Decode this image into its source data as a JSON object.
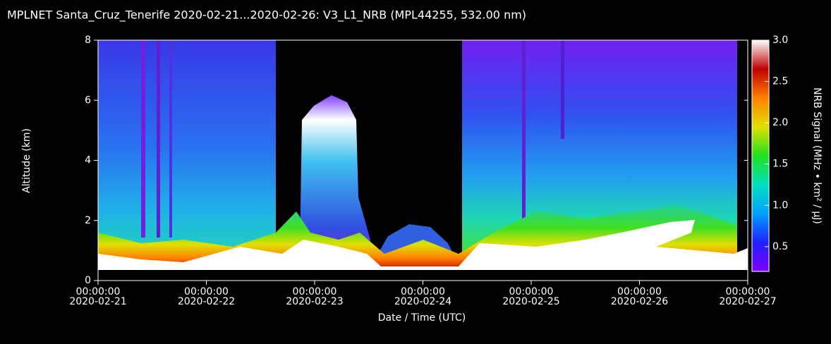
{
  "chart_data": {
    "type": "heatmap",
    "title": "MPLNET Santa_Cruz_Tenerife 2020-02-21...2020-02-26:  V3_L1_NRB   (MPL44255, 532.00 nm)",
    "x_label": "Date / Time (UTC)",
    "y_label": "Altitude (km)",
    "colorbar_label": "NRB Signal (MHz • km² / μJ)",
    "xlim": [
      "2020-02-21T00:00:00Z",
      "2020-02-27T00:00:00Z"
    ],
    "xticks": [
      {
        "value": "2020-02-21T00:00:00Z",
        "label": [
          "00:00:00",
          "2020-02-21"
        ]
      },
      {
        "value": "2020-02-22T00:00:00Z",
        "label": [
          "00:00:00",
          "2020-02-22"
        ]
      },
      {
        "value": "2020-02-23T00:00:00Z",
        "label": [
          "00:00:00",
          "2020-02-23"
        ]
      },
      {
        "value": "2020-02-24T00:00:00Z",
        "label": [
          "00:00:00",
          "2020-02-24"
        ]
      },
      {
        "value": "2020-02-25T00:00:00Z",
        "label": [
          "00:00:00",
          "2020-02-25"
        ]
      },
      {
        "value": "2020-02-26T00:00:00Z",
        "label": [
          "00:00:00",
          "2020-02-26"
        ]
      },
      {
        "value": "2020-02-27T00:00:00Z",
        "label": [
          "00:00:00",
          "2020-02-27"
        ]
      }
    ],
    "ylim": [
      0,
      8
    ],
    "yticks": [
      0,
      2,
      4,
      6,
      8
    ],
    "zlim": [
      0.2,
      3
    ],
    "zticks": [
      {
        "value": 0.5,
        "label": "0.5"
      },
      {
        "value": 1,
        "label": "1.0"
      },
      {
        "value": 1.5,
        "label": "1.5"
      },
      {
        "value": 2,
        "label": "2.0"
      },
      {
        "value": 2.5,
        "label": "2.5"
      },
      {
        "value": 3,
        "label": "3.0"
      }
    ],
    "colormap": [
      "#8000ff",
      "#2020ff",
      "#00a0ff",
      "#00e0c0",
      "#20e020",
      "#e0e000",
      "#ff8000",
      "#c00000",
      "#ffffff"
    ]
  }
}
